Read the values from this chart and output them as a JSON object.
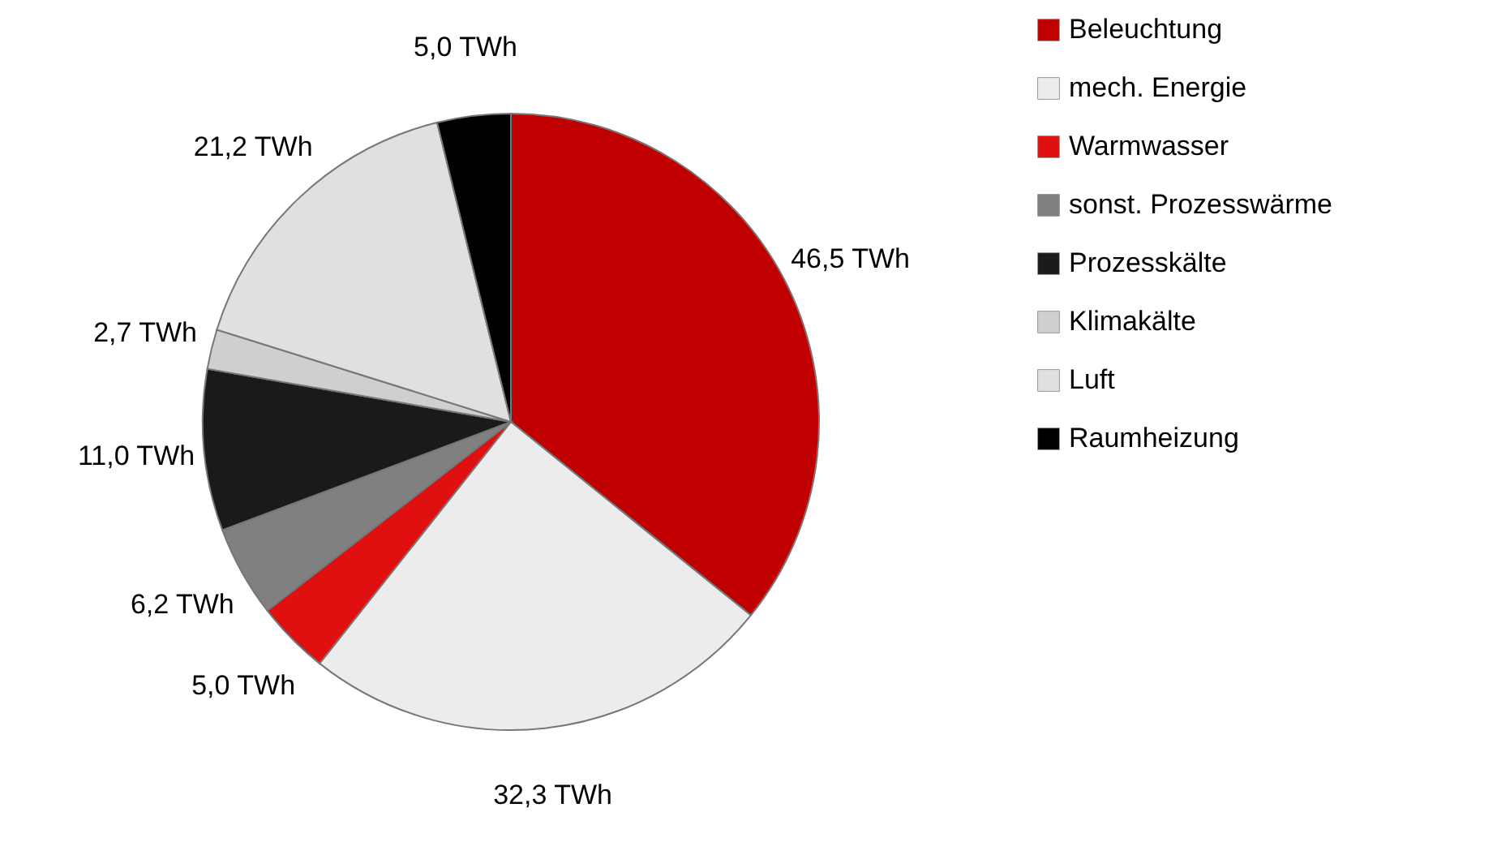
{
  "chart_data": {
    "type": "pie",
    "categories": [
      "Beleuchtung",
      "mech. Energie",
      "Warmwasser",
      "sonst. Prozesswärme",
      "Prozesskälte",
      "Klimakälte",
      "Luft",
      "Raumheizung"
    ],
    "values": [
      46.5,
      32.3,
      5.0,
      6.2,
      11.0,
      2.7,
      21.2,
      5.0
    ],
    "value_labels": [
      "46,5 TWh",
      "32,3 TWh",
      "5,0 TWh",
      "6,2 TWh",
      "11,0 TWh",
      "2,7 TWh",
      "21,2 TWh",
      "5,0 TWh"
    ],
    "colors": [
      "#c00000",
      "#ececec",
      "#e01010",
      "#808080",
      "#1a1a1a",
      "#cfcfcf",
      "#e0e0e0",
      "#000000"
    ],
    "legend": "right"
  }
}
